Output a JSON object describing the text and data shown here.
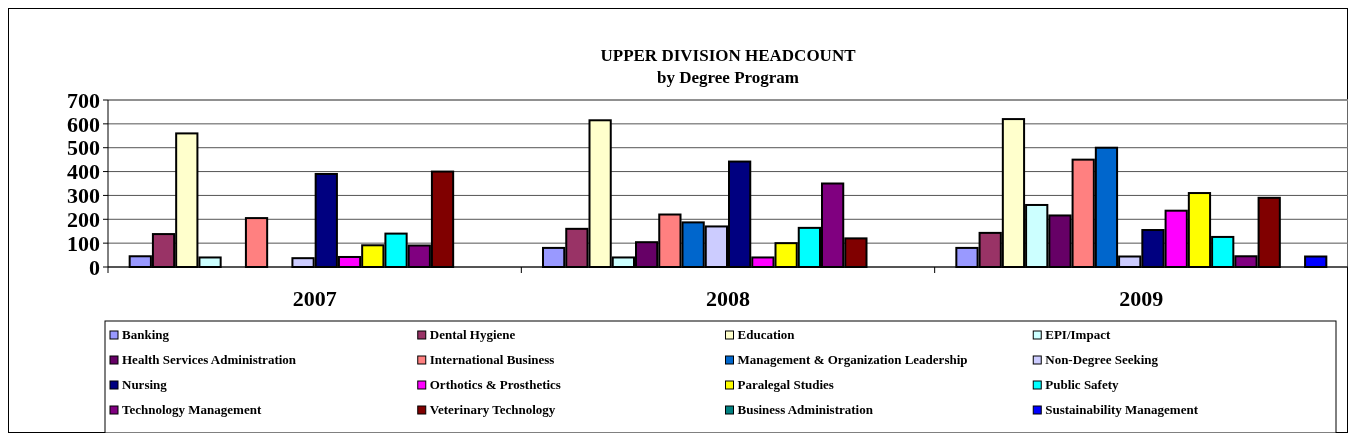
{
  "chart_data": {
    "type": "bar",
    "title": "UPPER DIVISION HEADCOUNT",
    "subtitle": "by Degree Program",
    "categories": [
      "2007",
      "2008",
      "2009"
    ],
    "ylim": [
      0,
      700
    ],
    "yticks": [
      0,
      100,
      200,
      300,
      400,
      500,
      600,
      700
    ],
    "grid": "y",
    "legend": "bottom",
    "series": [
      {
        "name": "Banking",
        "color": "#9999ff",
        "values": [
          45,
          80,
          80
        ]
      },
      {
        "name": "Dental Hygiene",
        "color": "#993366",
        "values": [
          138,
          160,
          143
        ]
      },
      {
        "name": "Education",
        "color": "#ffffcc",
        "values": [
          560,
          615,
          620
        ]
      },
      {
        "name": "EPI/Impact",
        "color": "#ccffff",
        "values": [
          40,
          40,
          260
        ]
      },
      {
        "name": "Health Services Administration",
        "color": "#660066",
        "values": [
          null,
          104,
          216
        ]
      },
      {
        "name": "International Business",
        "color": "#ff8080",
        "values": [
          205,
          220,
          450
        ]
      },
      {
        "name": "Management & Organization Leadership",
        "color": "#0066cc",
        "values": [
          null,
          187,
          500
        ]
      },
      {
        "name": "Non-Degree Seeking",
        "color": "#ccccff",
        "values": [
          37,
          170,
          44
        ]
      },
      {
        "name": "Nursing",
        "color": "#000080",
        "values": [
          390,
          442,
          155
        ]
      },
      {
        "name": "Orthotics & Prosthetics",
        "color": "#ff00ff",
        "values": [
          42,
          40,
          236
        ]
      },
      {
        "name": "Paralegal Studies",
        "color": "#ffff00",
        "values": [
          91,
          100,
          310
        ]
      },
      {
        "name": "Public Safety",
        "color": "#00ffff",
        "values": [
          140,
          164,
          126
        ]
      },
      {
        "name": "Technology Management",
        "color": "#800080",
        "values": [
          90,
          350,
          45
        ]
      },
      {
        "name": "Veterinary Technology",
        "color": "#800000",
        "values": [
          400,
          120,
          290
        ]
      },
      {
        "name": "Business Administration",
        "color": "#008080",
        "values": [
          null,
          null,
          null
        ]
      },
      {
        "name": "Sustainability Management",
        "color": "#0000ff",
        "values": [
          null,
          null,
          44
        ]
      }
    ]
  }
}
